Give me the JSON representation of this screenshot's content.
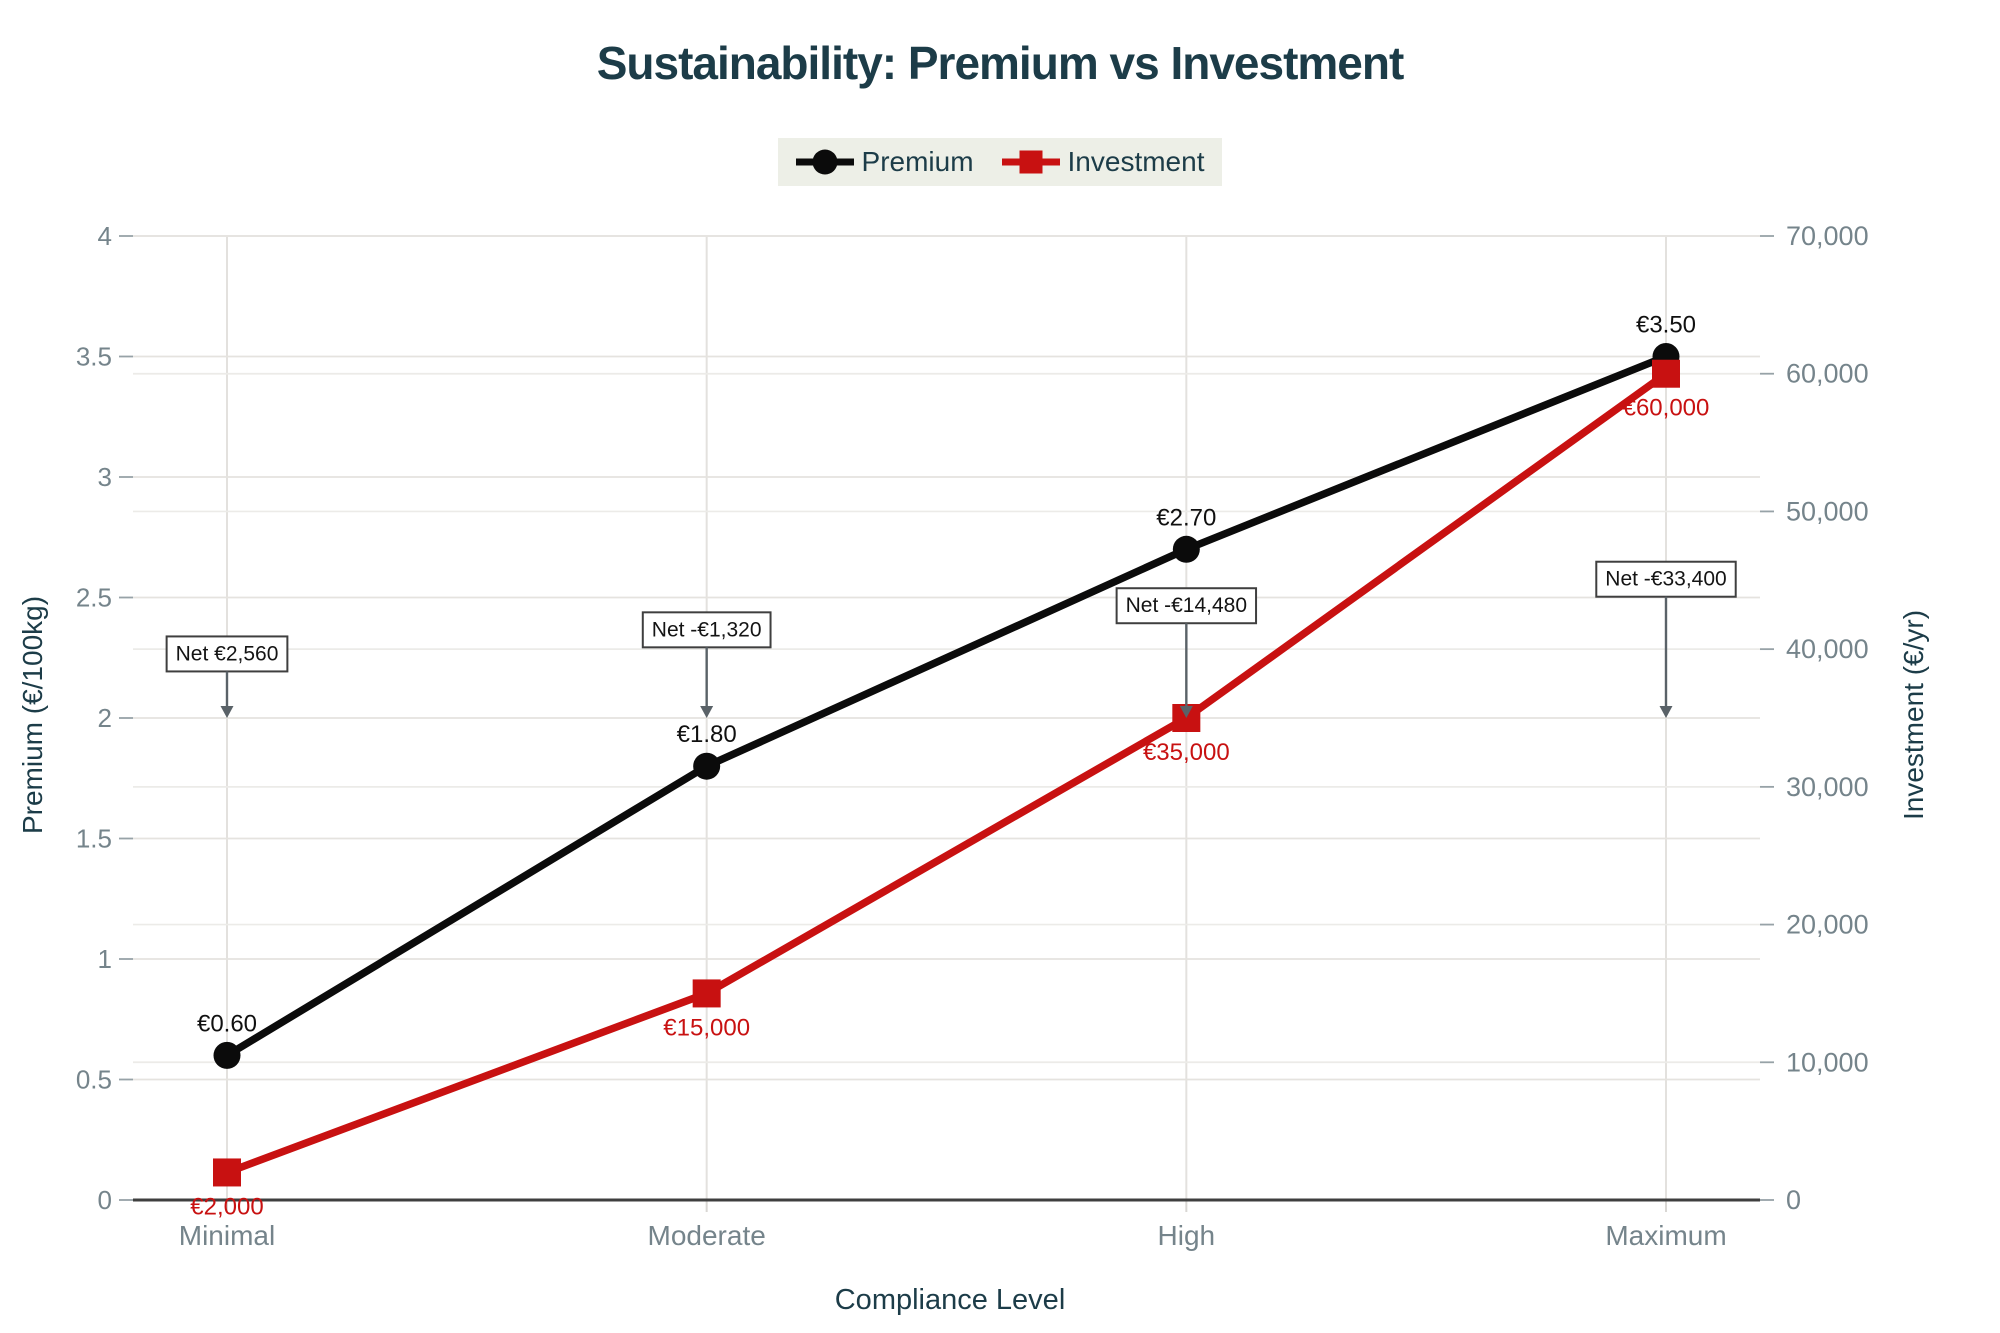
{
  "title": "Sustainability: Premium vs Investment",
  "legend": {
    "items": [
      {
        "label": "Premium",
        "marker": "circle",
        "color": "#0b0b0b"
      },
      {
        "label": "Investment",
        "marker": "square",
        "color": "#c81111"
      }
    ]
  },
  "colors": {
    "premium": "#0b0b0b",
    "investment": "#c81111",
    "title_teal": "#1c3c48",
    "tick_gray": "#75848b",
    "grid_major": "#e5e3df",
    "grid_minor": "#ecebe8",
    "grid_vertical": "#e3e1de",
    "axis_line": "#3f3f3f",
    "annotation_border": "#3f3f3f",
    "annotation_arrow": "#5a6268",
    "legend_bg": "#edefe7"
  },
  "chart_data": {
    "type": "line",
    "categories": [
      "Minimal",
      "Moderate",
      "High",
      "Maximum"
    ],
    "xlabel": "Compliance Level",
    "grid": true,
    "legend_position": "top-center",
    "series": [
      {
        "name": "Premium",
        "axis": "left",
        "marker": "circle",
        "values": [
          0.6,
          1.8,
          2.7,
          3.5
        ],
        "point_labels": [
          "€0.60",
          "€1.80",
          "€2.70",
          "€3.50"
        ],
        "label_side": "above"
      },
      {
        "name": "Investment",
        "axis": "right",
        "marker": "square",
        "values": [
          2000,
          15000,
          35000,
          60000
        ],
        "point_labels": [
          "€2,000",
          "€15,000",
          "€35,000",
          "€60,000"
        ],
        "label_side": "below"
      }
    ],
    "left_axis": {
      "label": "Premium (€/100kg)",
      "lim": [
        0,
        4
      ],
      "ticks": [
        {
          "v": 0,
          "label": "0"
        },
        {
          "v": 0.5,
          "label": "0.5"
        },
        {
          "v": 1,
          "label": "1"
        },
        {
          "v": 1.5,
          "label": "1.5"
        },
        {
          "v": 2,
          "label": "2"
        },
        {
          "v": 2.5,
          "label": "2.5"
        },
        {
          "v": 3,
          "label": "3"
        },
        {
          "v": 3.5,
          "label": "3.5"
        },
        {
          "v": 4,
          "label": "4"
        }
      ]
    },
    "right_axis": {
      "label": "Investment (€/yr)",
      "lim": [
        0,
        70000
      ],
      "ticks": [
        {
          "v": 0,
          "label": "0"
        },
        {
          "v": 10000,
          "label": "10,000"
        },
        {
          "v": 20000,
          "label": "20,000"
        },
        {
          "v": 30000,
          "label": "30,000"
        },
        {
          "v": 40000,
          "label": "40,000"
        },
        {
          "v": 50000,
          "label": "50,000"
        },
        {
          "v": 60000,
          "label": "60,000"
        },
        {
          "v": 70000,
          "label": "70,000"
        }
      ]
    },
    "annotations": [
      {
        "label": "Net €2,560",
        "category_index": 0,
        "box_y": 2.27,
        "arrow_tip_y": 2.0
      },
      {
        "label": "Net -€1,320",
        "category_index": 1,
        "box_y": 2.37,
        "arrow_tip_y": 2.0
      },
      {
        "label": "Net -€14,480",
        "category_index": 2,
        "box_y": 2.47,
        "arrow_tip_y": 2.0
      },
      {
        "label": "Net -€33,400",
        "category_index": 3,
        "box_y": 2.58,
        "arrow_tip_y": 2.0
      }
    ]
  }
}
